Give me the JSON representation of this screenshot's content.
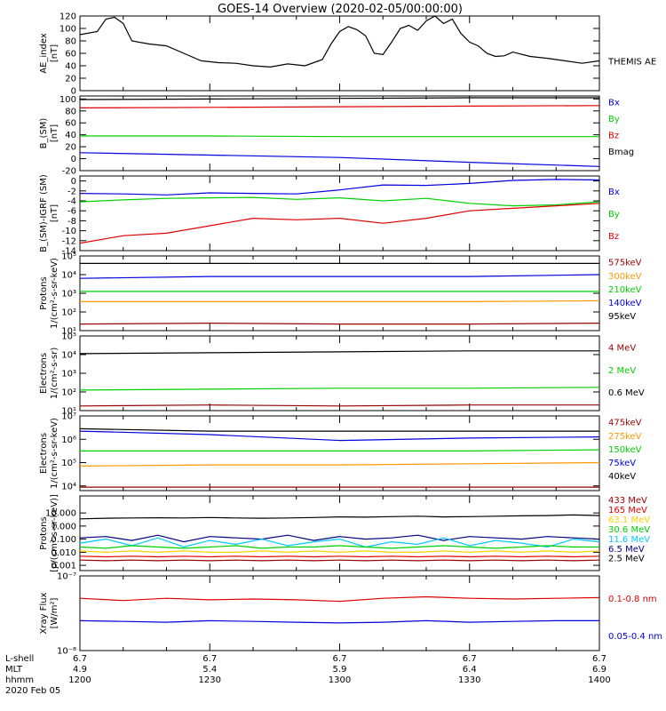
{
  "title": "GOES-14 Overview (2020-02-05/00:00:00)",
  "footer": {
    "row_labels": [
      "L-shell",
      "MLT",
      "hhmm",
      "2020 Feb 05"
    ],
    "columns": [
      {
        "lshell": "6.7",
        "mlt": "4.9",
        "hhmm": "1200"
      },
      {
        "lshell": "6.7",
        "mlt": "5.4",
        "hhmm": "1230"
      },
      {
        "lshell": "6.7",
        "mlt": "5.9",
        "hhmm": "1300"
      },
      {
        "lshell": "6.7",
        "mlt": "6.4",
        "hhmm": "1330"
      },
      {
        "lshell": "6.7",
        "mlt": "6.9",
        "hhmm": "1400"
      }
    ]
  },
  "chart_data": [
    {
      "type": "line",
      "ylabel_lines": [
        "AE_index",
        "[nT]"
      ],
      "ylim": [
        0,
        120
      ],
      "yticks": [
        "0",
        "20",
        "40",
        "60",
        "80",
        "100",
        "120"
      ],
      "x_minutes": [
        0,
        4,
        6,
        8,
        10,
        12,
        16,
        20,
        24,
        28,
        32,
        36,
        40,
        44,
        48,
        52,
        56,
        58,
        60,
        62,
        64,
        66,
        68,
        70,
        72,
        74,
        76,
        78,
        80,
        82,
        84,
        86,
        88,
        90,
        92,
        94,
        96,
        98,
        100,
        104,
        108,
        112,
        116,
        120
      ],
      "series": [
        {
          "name": "THEMIS AE",
          "color": "#000000",
          "values": [
            90,
            95,
            115,
            118,
            108,
            80,
            75,
            72,
            60,
            48,
            45,
            44,
            40,
            38,
            43,
            40,
            50,
            75,
            95,
            103,
            98,
            88,
            60,
            58,
            78,
            100,
            105,
            97,
            112,
            120,
            108,
            115,
            92,
            78,
            72,
            60,
            55,
            56,
            62,
            55,
            52,
            48,
            44,
            48
          ]
        }
      ],
      "legend_labels": [
        {
          "text": "THEMIS AE",
          "color": "#000000",
          "pos": 60
        }
      ]
    },
    {
      "type": "line",
      "ylabel_lines": [
        "B_(SM)",
        "[nT]"
      ],
      "ylim": [
        -20,
        105
      ],
      "yticks": [
        "-20",
        "0",
        "20",
        "40",
        "60",
        "80",
        "100"
      ],
      "x_minutes": [
        0,
        30,
        60,
        90,
        120
      ],
      "series": [
        {
          "name": "Bmag",
          "color": "#000000",
          "values": [
            99,
            100,
            101,
            102,
            102
          ]
        },
        {
          "name": "Bz",
          "color": "#e00000",
          "values": [
            85,
            86,
            87,
            88,
            89
          ]
        },
        {
          "name": "By",
          "color": "#00d000",
          "values": [
            38,
            38,
            37,
            37,
            37
          ]
        },
        {
          "name": "Bx",
          "color": "#0000e0",
          "values": [
            10,
            6,
            2,
            -6,
            -13
          ]
        }
      ],
      "legend_labels": [
        {
          "text": "Bx",
          "color": "#0000e0",
          "pos": 8
        },
        {
          "text": "By",
          "color": "#00d000",
          "pos": 30
        },
        {
          "text": "Bz",
          "color": "#e00000",
          "pos": 52
        },
        {
          "text": "Bmag",
          "color": "#000000",
          "pos": 74
        }
      ]
    },
    {
      "type": "line",
      "ylabel_lines": [
        "B_(SM)-IGRF (SM)",
        "[nT]"
      ],
      "ylim": [
        -14,
        1
      ],
      "yticks": [
        "-14",
        "-12",
        "-10",
        "-8",
        "-6",
        "-4",
        "-2",
        "0"
      ],
      "x_minutes": [
        0,
        10,
        20,
        30,
        40,
        50,
        60,
        70,
        80,
        90,
        100,
        110,
        120
      ],
      "series": [
        {
          "name": "Bx",
          "color": "#0000e0",
          "values": [
            -2.5,
            -2.6,
            -2.8,
            -2.4,
            -2.5,
            -2.6,
            -1.8,
            -0.8,
            -0.9,
            -0.5,
            0.1,
            0.3,
            0.2
          ]
        },
        {
          "name": "By",
          "color": "#00d000",
          "values": [
            -4.2,
            -3.8,
            -3.5,
            -3.4,
            -3.3,
            -3.7,
            -3.4,
            -4.0,
            -3.5,
            -4.5,
            -5.0,
            -4.8,
            -4.2
          ]
        },
        {
          "name": "Bz",
          "color": "#e00000",
          "values": [
            -12.5,
            -11.0,
            -10.5,
            -9.0,
            -7.5,
            -7.8,
            -7.5,
            -8.5,
            -7.5,
            -6.0,
            -5.5,
            -5.0,
            -4.5
          ]
        }
      ],
      "legend_labels": [
        {
          "text": "Bx",
          "color": "#0000e0",
          "pos": 20
        },
        {
          "text": "By",
          "color": "#00d000",
          "pos": 50
        },
        {
          "text": "Bz",
          "color": "#e00000",
          "pos": 80
        }
      ]
    },
    {
      "type": "line",
      "scale": "log",
      "ylabel_lines": [
        "Protons",
        "1/(cm²-s-sr-keV)"
      ],
      "ylim": [
        1,
        5
      ],
      "yticks": [
        "10¹",
        "10²",
        "10³",
        "10⁴",
        "10⁵"
      ],
      "x_minutes": [
        0,
        30,
        60,
        90,
        120
      ],
      "series": [
        {
          "name": "95keV",
          "color": "#000000",
          "values": [
            4.6,
            4.6,
            4.6,
            4.6,
            4.6
          ]
        },
        {
          "name": "140keV",
          "color": "#0000e0",
          "values": [
            3.8,
            3.9,
            3.9,
            3.9,
            4.0
          ]
        },
        {
          "name": "210keV",
          "color": "#00d000",
          "values": [
            3.1,
            3.1,
            3.1,
            3.1,
            3.1
          ]
        },
        {
          "name": "300keV",
          "color": "#ff9900",
          "values": [
            2.55,
            2.55,
            2.55,
            2.55,
            2.6
          ]
        },
        {
          "name": "575keV",
          "color": "#990000",
          "values": [
            1.35,
            1.4,
            1.35,
            1.35,
            1.4
          ]
        }
      ],
      "legend_labels": [
        {
          "text": "575keV",
          "color": "#990000",
          "pos": 8
        },
        {
          "text": "300keV",
          "color": "#ff9900",
          "pos": 26
        },
        {
          "text": "210keV",
          "color": "#00d000",
          "pos": 44
        },
        {
          "text": "140keV",
          "color": "#0000e0",
          "pos": 62
        },
        {
          "text": "95keV",
          "color": "#000000",
          "pos": 80
        }
      ]
    },
    {
      "type": "line",
      "scale": "log",
      "ylabel_lines": [
        "Electrons",
        "1/(cm²-s-sr)"
      ],
      "ylim": [
        1,
        5
      ],
      "yticks": [
        "10¹",
        "10²",
        "10³",
        "10⁴",
        "10⁵"
      ],
      "x_minutes": [
        0,
        30,
        60,
        90,
        120
      ],
      "series": [
        {
          "name": "0.6 MeV",
          "color": "#000000",
          "values": [
            4.05,
            4.1,
            4.15,
            4.2,
            4.2
          ]
        },
        {
          "name": "2 MeV",
          "color": "#00d000",
          "values": [
            2.1,
            2.15,
            2.2,
            2.2,
            2.25
          ]
        },
        {
          "name": "4 MeV",
          "color": "#990000",
          "values": [
            1.25,
            1.3,
            1.25,
            1.3,
            1.3
          ]
        }
      ],
      "legend_labels": [
        {
          "text": "4 MeV",
          "color": "#990000",
          "pos": 15
        },
        {
          "text": "2 MeV",
          "color": "#00d000",
          "pos": 45
        },
        {
          "text": "0.6 MeV",
          "color": "#000000",
          "pos": 75
        }
      ]
    },
    {
      "type": "line",
      "scale": "log",
      "ylabel_lines": [
        "Electrons",
        "1/(cm²-s-sr-keV)"
      ],
      "ylim": [
        3.8,
        7
      ],
      "yticks": [
        "10⁴",
        "10⁵",
        "10⁶",
        "10⁷"
      ],
      "ytick_values": [
        4,
        5,
        6,
        7
      ],
      "x_minutes": [
        0,
        30,
        60,
        90,
        120
      ],
      "series": [
        {
          "name": "40keV",
          "color": "#000000",
          "values": [
            6.45,
            6.35,
            6.35,
            6.35,
            6.35
          ]
        },
        {
          "name": "75keV",
          "color": "#0000e0",
          "values": [
            6.35,
            6.2,
            5.95,
            6.05,
            6.1
          ]
        },
        {
          "name": "150keV",
          "color": "#00d000",
          "values": [
            5.5,
            5.5,
            5.5,
            5.5,
            5.55
          ]
        },
        {
          "name": "275keV",
          "color": "#ff9900",
          "values": [
            4.85,
            4.9,
            4.9,
            4.95,
            5.0
          ]
        },
        {
          "name": "475keV",
          "color": "#990000",
          "values": [
            3.95,
            3.95,
            3.95,
            3.95,
            3.95
          ]
        }
      ],
      "legend_labels": [
        {
          "text": "475keV",
          "color": "#990000",
          "pos": 8
        },
        {
          "text": "275keV",
          "color": "#ff9900",
          "pos": 26
        },
        {
          "text": "150keV",
          "color": "#00d000",
          "pos": 44
        },
        {
          "text": "75keV",
          "color": "#0000e0",
          "pos": 62
        },
        {
          "text": "40keV",
          "color": "#000000",
          "pos": 80
        }
      ]
    },
    {
      "type": "line",
      "scale": "log",
      "ylabel_lines": [
        "Protons",
        "[p/(cm²-s-sr-keV)]"
      ],
      "ylim": [
        -3.4,
        2.3
      ],
      "yticks": [
        "0.001",
        "0.010",
        "0.100",
        "1.000",
        "10.000"
      ],
      "ytick_values": [
        -3,
        -2,
        -1,
        0,
        1
      ],
      "x_minutes": [
        0,
        6,
        12,
        18,
        24,
        30,
        36,
        42,
        48,
        54,
        60,
        66,
        72,
        78,
        84,
        90,
        96,
        102,
        108,
        114,
        120
      ],
      "series": [
        {
          "name": "2.5 MeV",
          "color": "#000000",
          "values": [
            0.55,
            0.6,
            0.62,
            0.63,
            0.62,
            0.65,
            0.62,
            0.6,
            0.62,
            0.65,
            0.7,
            0.68,
            0.72,
            0.75,
            0.7,
            0.72,
            0.75,
            0.78,
            0.8,
            0.85,
            0.8
          ]
        },
        {
          "name": "6.5 MeV",
          "color": "#000080",
          "values": [
            -0.9,
            -0.8,
            -1.1,
            -0.7,
            -1.2,
            -0.8,
            -0.9,
            -1.0,
            -0.7,
            -1.1,
            -0.8,
            -1.0,
            -0.9,
            -0.7,
            -1.1,
            -0.8,
            -0.9,
            -1.0,
            -0.8,
            -0.9,
            -1.0
          ]
        },
        {
          "name": "11.6 MeV",
          "color": "#00c8ff",
          "values": [
            -1.3,
            -1.0,
            -1.5,
            -0.9,
            -1.6,
            -1.1,
            -1.4,
            -1.0,
            -1.5,
            -1.2,
            -1.0,
            -1.6,
            -1.2,
            -1.4,
            -0.9,
            -1.5,
            -1.1,
            -1.3,
            -1.6,
            -1.0,
            -1.2
          ]
        },
        {
          "name": "30.6 MeV",
          "color": "#00d000",
          "values": [
            -1.6,
            -1.7,
            -1.5,
            -1.6,
            -1.7,
            -1.6,
            -1.5,
            -1.7,
            -1.6,
            -1.6,
            -1.5,
            -1.6,
            -1.7,
            -1.6,
            -1.5,
            -1.6,
            -1.7,
            -1.6,
            -1.5,
            -1.6,
            -1.6
          ]
        },
        {
          "name": "63.1 MeV",
          "color": "#ffd000",
          "values": [
            -1.9,
            -2.0,
            -1.9,
            -2.0,
            -1.9,
            -2.0,
            -2.0,
            -1.9,
            -2.0,
            -1.9,
            -2.0,
            -1.9,
            -2.0,
            -2.0,
            -1.9,
            -2.0,
            -1.9,
            -2.0,
            -1.9,
            -2.0,
            -1.9
          ]
        },
        {
          "name": "165 MeV",
          "color": "#e00000",
          "values": [
            -2.3,
            -2.35,
            -2.3,
            -2.35,
            -2.3,
            -2.35,
            -2.3,
            -2.35,
            -2.3,
            -2.35,
            -2.3,
            -2.35,
            -2.3,
            -2.35,
            -2.3,
            -2.35,
            -2.3,
            -2.35,
            -2.3,
            -2.35,
            -2.3
          ]
        },
        {
          "name": "433 MeV",
          "color": "#990000",
          "values": [
            -2.6,
            -2.65,
            -2.6,
            -2.65,
            -2.6,
            -2.65,
            -2.6,
            -2.65,
            -2.6,
            -2.65,
            -2.6,
            -2.65,
            -2.6,
            -2.65,
            -2.6,
            -2.65,
            -2.6,
            -2.65,
            -2.6,
            -2.65,
            -2.6
          ]
        }
      ],
      "legend_labels": [
        {
          "text": "433 MeV",
          "color": "#990000",
          "pos": 5
        },
        {
          "text": "165 MeV",
          "color": "#e00000",
          "pos": 18
        },
        {
          "text": "63.1 MeV",
          "color": "#ffd000",
          "pos": 31
        },
        {
          "text": "30.6 MeV",
          "color": "#00d000",
          "pos": 44
        },
        {
          "text": "11.6 MeV",
          "color": "#00c8ff",
          "pos": 57
        },
        {
          "text": "6.5 MeV",
          "color": "#000080",
          "pos": 70
        },
        {
          "text": "2.5 MeV",
          "color": "#000000",
          "pos": 83
        }
      ]
    },
    {
      "type": "line",
      "scale": "log",
      "ylabel_lines": [
        "Xray Flux",
        "[W/m²]"
      ],
      "ylim": [
        -8,
        -7
      ],
      "yticks": [
        "10⁻⁸",
        "10⁻⁷"
      ],
      "ytick_values": [
        -8,
        -7
      ],
      "x_minutes": [
        0,
        10,
        20,
        30,
        40,
        50,
        60,
        70,
        80,
        90,
        100,
        110,
        120
      ],
      "series": [
        {
          "name": "0.1-0.8 nm",
          "color": "#e00000",
          "values": [
            -7.3,
            -7.33,
            -7.3,
            -7.32,
            -7.31,
            -7.32,
            -7.34,
            -7.3,
            -7.28,
            -7.3,
            -7.31,
            -7.3,
            -7.29
          ]
        },
        {
          "name": "0.05-0.4 nm",
          "color": "#0000e0",
          "values": [
            -7.6,
            -7.61,
            -7.62,
            -7.6,
            -7.61,
            -7.62,
            -7.63,
            -7.62,
            -7.6,
            -7.62,
            -7.61,
            -7.6,
            -7.6
          ]
        }
      ],
      "legend_labels": [
        {
          "text": "0.1-0.8 nm",
          "color": "#e00000",
          "pos": 30
        },
        {
          "text": "0.05-0.4 nm",
          "color": "#0000e0",
          "pos": 80
        }
      ]
    }
  ]
}
